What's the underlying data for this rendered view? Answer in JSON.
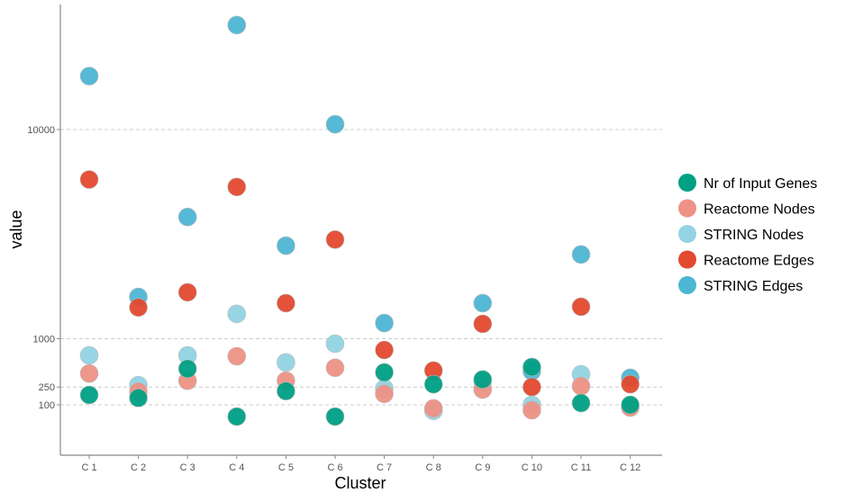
{
  "chart_data": {
    "type": "scatter",
    "xlabel": "Cluster",
    "ylabel": "value",
    "y_scale": "sqrt",
    "yticks": [
      100,
      250,
      1000,
      10000
    ],
    "ytick_labels": [
      "100",
      "250",
      "1000",
      "10000"
    ],
    "categories": [
      "C 1",
      "C 2",
      "C 3",
      "C 4",
      "C 5",
      "C 6",
      "C 7",
      "C 8",
      "C 9",
      "C 10",
      "C 11",
      "C 12"
    ],
    "grid": "horizontal dashed",
    "legend_position": "right",
    "series": [
      {
        "name": "STRING Edges",
        "color": "#4DB6D4",
        "values": [
          13800,
          2050,
          5100,
          18000,
          3850,
          10350,
          1350,
          null,
          1870,
          440,
          3500,
          355
        ]
      },
      {
        "name": "Reactome Edges",
        "color": "#E2492F",
        "values": [
          7000,
          1750,
          2190,
          6600,
          1870,
          4100,
          780,
          450,
          1330,
          250,
          1770,
          280
        ]
      },
      {
        "name": "STRING Nodes",
        "color": "#93D3E3",
        "values": [
          685,
          270,
          685,
          1580,
          570,
          900,
          235,
          65,
          300,
          100,
          400,
          90
        ]
      },
      {
        "name": "Reactome Nodes",
        "color": "#EE9285",
        "values": [
          410,
          205,
          320,
          670,
          320,
          490,
          185,
          78,
          225,
          68,
          260,
          83
        ]
      },
      {
        "name": "Nr of Input Genes",
        "color": "#00A084",
        "values": [
          175,
          150,
          475,
          38,
          210,
          38,
          425,
          280,
          335,
          500,
          112,
          100
        ]
      }
    ],
    "legend_order": [
      "Nr of Input Genes",
      "Reactome Nodes",
      "STRING Nodes",
      "Reactome Edges",
      "STRING Edges"
    ]
  }
}
